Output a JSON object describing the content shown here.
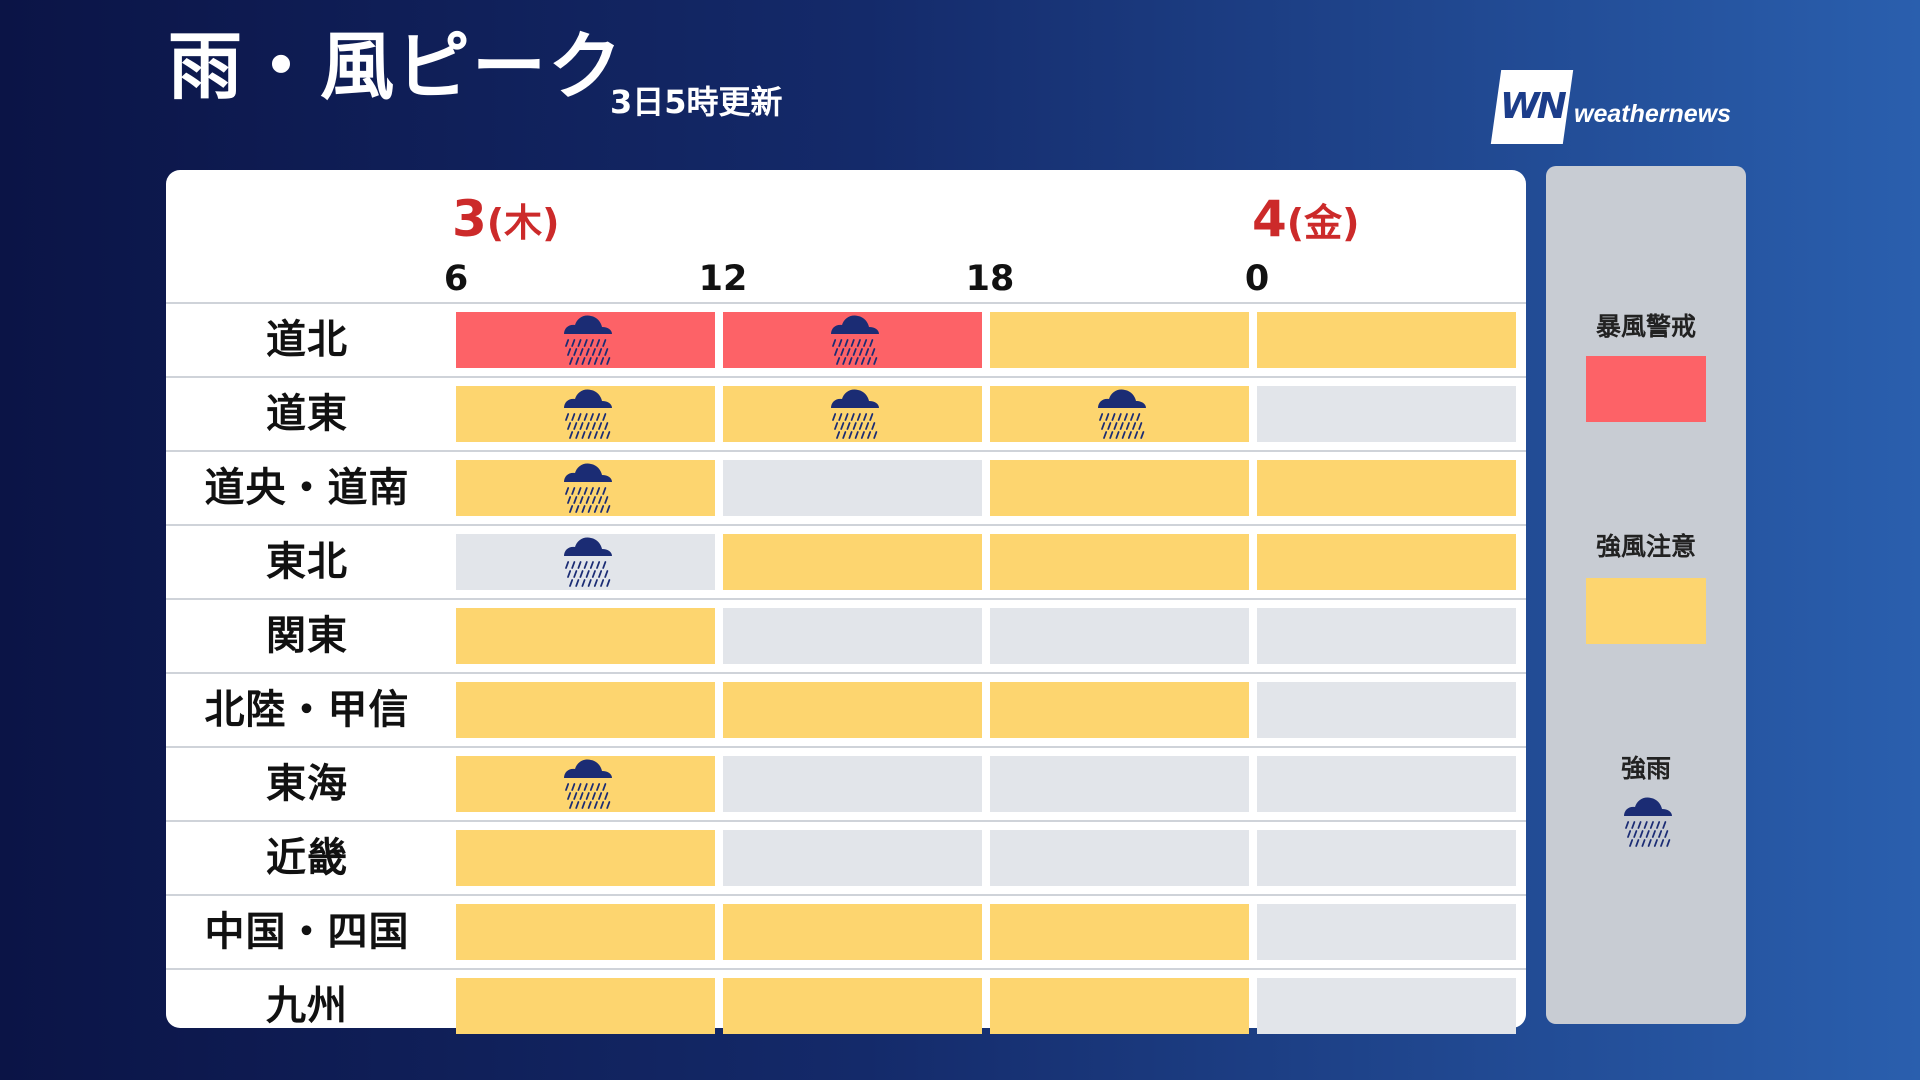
{
  "header": {
    "title": "雨・風ピーク",
    "updated": "3日5時更新",
    "logo_mark": "WN",
    "logo_text": "weathernews"
  },
  "days": [
    {
      "num": "3",
      "weekday": "(木)"
    },
    {
      "num": "4",
      "weekday": "(金)"
    }
  ],
  "hours": [
    "6",
    "12",
    "18",
    "0"
  ],
  "colors": {
    "none": "#e2e5ea",
    "caution": "#fdd56f",
    "warning": "#fd6267",
    "rain_icon": "#1b2c74"
  },
  "legend": {
    "warning_label": "暴風警戒",
    "caution_label": "強風注意",
    "rain_label": "強雨"
  },
  "chart_data": {
    "type": "heatmap",
    "title": "雨・風ピーク",
    "columns": [
      "6",
      "12",
      "18",
      "0"
    ],
    "levels": {
      "0": "なし",
      "1": "強風注意",
      "2": "暴風警戒"
    },
    "rows": [
      {
        "region": "道北",
        "wind": [
          2,
          2,
          1,
          1
        ],
        "rain": [
          true,
          true,
          false,
          false
        ]
      },
      {
        "region": "道東",
        "wind": [
          1,
          1,
          1,
          0
        ],
        "rain": [
          true,
          true,
          true,
          false
        ]
      },
      {
        "region": "道央・道南",
        "wind": [
          1,
          0,
          1,
          1
        ],
        "rain": [
          true,
          false,
          false,
          false
        ]
      },
      {
        "region": "東北",
        "wind": [
          0,
          1,
          1,
          1
        ],
        "rain": [
          true,
          false,
          false,
          false
        ]
      },
      {
        "region": "関東",
        "wind": [
          1,
          0,
          0,
          0
        ],
        "rain": [
          false,
          false,
          false,
          false
        ]
      },
      {
        "region": "北陸・甲信",
        "wind": [
          1,
          1,
          1,
          0
        ],
        "rain": [
          false,
          false,
          false,
          false
        ]
      },
      {
        "region": "東海",
        "wind": [
          1,
          0,
          0,
          0
        ],
        "rain": [
          true,
          false,
          false,
          false
        ]
      },
      {
        "region": "近畿",
        "wind": [
          1,
          0,
          0,
          0
        ],
        "rain": [
          false,
          false,
          false,
          false
        ]
      },
      {
        "region": "中国・四国",
        "wind": [
          1,
          1,
          1,
          0
        ],
        "rain": [
          false,
          false,
          false,
          false
        ]
      },
      {
        "region": "九州",
        "wind": [
          1,
          1,
          1,
          0
        ],
        "rain": [
          false,
          false,
          false,
          false
        ]
      }
    ]
  }
}
